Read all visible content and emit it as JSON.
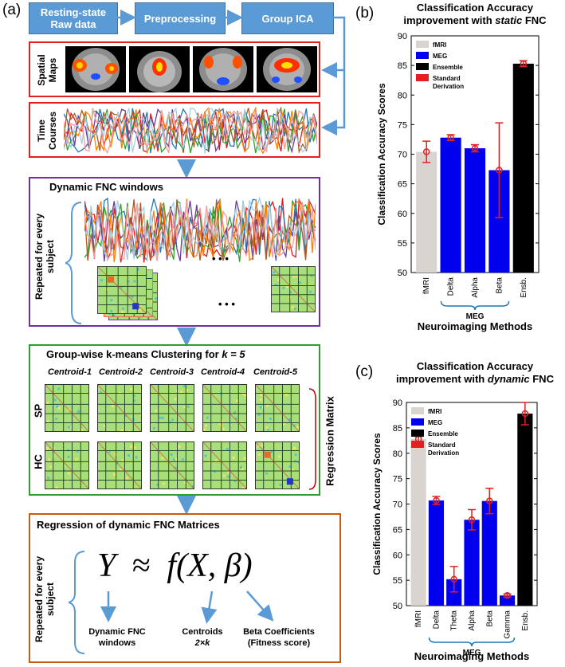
{
  "left": {
    "panel_label": "(a)",
    "flow": {
      "box1": "Resting-state Raw data",
      "box1_l1": "Resting-state",
      "box1_l2": "Raw data",
      "box2": "Preprocessing",
      "box3": "Group ICA"
    },
    "spatial_maps_label": "Spatial Maps",
    "spatial_l1": "Spatial",
    "spatial_l2": "Maps",
    "time_courses_label": "Time Courses",
    "time_l1": "Time",
    "time_l2": "Courses",
    "dfnc": {
      "title": "Dynamic FNC windows",
      "side_label": "Repeated for every subject",
      "side_l1": "Repeated for every",
      "side_l2": "subject",
      "ellipsis": "• • •"
    },
    "kmeans": {
      "title_prefix": "Group-wise k-means Clustering for",
      "title_var": "k = 5",
      "centroids": [
        "Centroid-1",
        "Centroid-2",
        "Centroid-3",
        "Centroid-4",
        "Centroid-5"
      ],
      "rows": [
        "SP",
        "HC"
      ],
      "regression_matrix": "Regression Matrix"
    },
    "regression": {
      "title": "Regression of dynamic FNC Matrices",
      "side_l1": "Repeated for every",
      "side_l2": "subject",
      "equation": {
        "y": "Y",
        "approx": "≈",
        "f": "f",
        "args": "(X, β)"
      },
      "labels": {
        "dfnc_l1": "Dynamic FNC",
        "dfnc_l2": "windows",
        "cent_l1": "Centroids",
        "cent_l2": "2×k",
        "beta_l1": "Beta Coefficients",
        "beta_l2": "(Fitness score)"
      }
    }
  },
  "chart_data": [
    {
      "panel": "(b)",
      "type": "bar",
      "title_line1": "Classification Accuracy",
      "title_line2_prefix": "improvement with",
      "title_line2_italic": "static",
      "title_line2_suffix": "FNC",
      "ylabel": "Classification Accuracy Scores",
      "xlabel": "Neuroimaging Methods",
      "group_label": "MEG",
      "ylim": [
        50,
        90
      ],
      "yticks": [
        50,
        55,
        60,
        65,
        70,
        75,
        80,
        85,
        90
      ],
      "categories": [
        "fMRI",
        "Delta",
        "Alpha",
        "Beta",
        "Ensb."
      ],
      "values": [
        70.4,
        72.8,
        71.0,
        67.3,
        85.3
      ],
      "errors": [
        1.8,
        0.5,
        0.6,
        8.0,
        0.5
      ],
      "colors": [
        "#d9d4d0",
        "#0000ee",
        "#0000ee",
        "#0000ee",
        "#000000"
      ],
      "error_color": "#e32020",
      "legend": [
        {
          "label": "fMRI",
          "color": "#d9d4d0"
        },
        {
          "label": "MEG",
          "color": "#0000ee"
        },
        {
          "label": "Ensemble",
          "color": "#000000"
        },
        {
          "label": "Standard",
          "color": "#e32020"
        },
        {
          "label": "Derivation",
          "color": ""
        }
      ]
    },
    {
      "panel": "(c)",
      "type": "bar",
      "title_line1": "Classification Accuracy",
      "title_line2_prefix": "improvement with",
      "title_line2_italic": "dynamic",
      "title_line2_suffix": "FNC",
      "ylabel": "Classification Accuracy Scores",
      "xlabel": "Neuroimaging Methods",
      "group_label": "MEG",
      "ylim": [
        50,
        90
      ],
      "yticks": [
        50,
        55,
        60,
        65,
        70,
        75,
        80,
        85,
        90
      ],
      "categories": [
        "fMRI",
        "Delta",
        "Theta",
        "Alpha",
        "Beta",
        "Gamma",
        "Ensb."
      ],
      "values": [
        82.8,
        70.7,
        55.2,
        66.9,
        70.6,
        52.0,
        87.8
      ],
      "errors": [
        0.5,
        0.8,
        2.5,
        2.0,
        2.5,
        0.3,
        2.2
      ],
      "colors": [
        "#d9d4d0",
        "#0000ee",
        "#0000ee",
        "#0000ee",
        "#0000ee",
        "#0000ee",
        "#000000"
      ],
      "error_color": "#e32020",
      "legend": [
        {
          "label": "fMRI",
          "color": "#d9d4d0"
        },
        {
          "label": "MEG",
          "color": "#0000ee"
        },
        {
          "label": "Ensemble",
          "color": "#000000"
        },
        {
          "label": "Standard",
          "color": "#e32020"
        },
        {
          "label": "Derivation",
          "color": ""
        }
      ]
    }
  ]
}
